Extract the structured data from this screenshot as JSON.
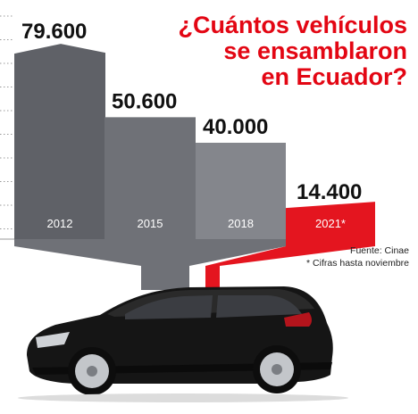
{
  "title": {
    "lines": [
      "¿Cuántos vehículos",
      "se ensamblaron",
      "en Ecuador?"
    ]
  },
  "chart_data": {
    "type": "bar",
    "title": "¿Cuántos vehículos se ensamblaron en Ecuador?",
    "categories": [
      "2012",
      "2015",
      "2018",
      "2021*"
    ],
    "values": [
      79600,
      50600,
      40000,
      14400
    ],
    "value_labels": [
      "79.600",
      "50.600",
      "40.000",
      "14.400"
    ],
    "ylim": [
      0,
      90000
    ],
    "grid": true,
    "highlight_index": 3,
    "colors": {
      "bar_2012": "#5f6167",
      "bar_2015": "#6f7177",
      "bar_2018": "#84868c",
      "bar_2021": "#e4151f",
      "funnel_gray": "#6f7177",
      "funnel_red": "#e4151f",
      "title_red": "#e30613",
      "text_dark": "#111111",
      "grid_dots": "#999999"
    }
  },
  "notes": {
    "source": "Fuente: Cinae",
    "footnote": "* Cifras hasta noviembre"
  },
  "illustration": {
    "icon": "car-hatchback-black",
    "color": "#151515"
  }
}
